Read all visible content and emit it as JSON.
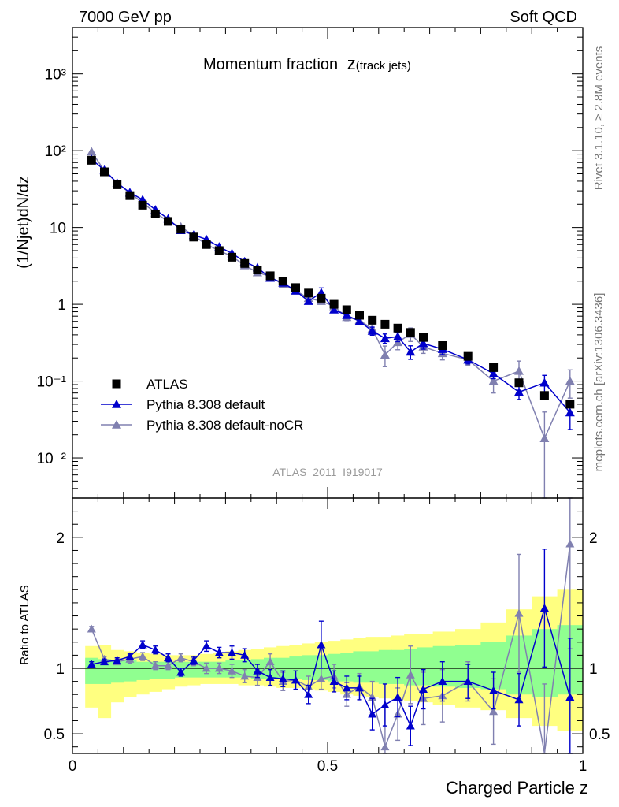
{
  "header": {
    "left": "7000 GeV pp",
    "right": "Soft QCD"
  },
  "side_labels": {
    "rivet": "Rivet 3.1.10, ≥ 2.8M events",
    "mcplots": "mcplots.cern.ch [arXiv:1306.3436]"
  },
  "colors": {
    "atlas": "#000000",
    "default": "#0000cc",
    "nocr": "#8080b0",
    "band_outer": "#ffff80",
    "band_inner": "#90ff90"
  },
  "chart_data": [
    {
      "type": "scatter",
      "title": "Momentum fraction",
      "title_suffix": "z",
      "title_sub": "(track jets)",
      "xlabel": "",
      "ylabel": "(1/Njet)dN/dz",
      "yscale": "log",
      "xlim": [
        0,
        1
      ],
      "ylim": [
        0.003,
        4000
      ],
      "y_tick_labels": [
        "10⁻²",
        "10⁻¹",
        "1",
        "10",
        "10²",
        "10³"
      ],
      "analysis_label": "ATLAS_2011_I919017",
      "legend_position": "lower-left",
      "x": [
        0.0375,
        0.0625,
        0.0875,
        0.1125,
        0.1375,
        0.1625,
        0.1875,
        0.2125,
        0.2375,
        0.2625,
        0.2875,
        0.3125,
        0.3375,
        0.3625,
        0.3875,
        0.4125,
        0.4375,
        0.4625,
        0.4875,
        0.5125,
        0.5375,
        0.5625,
        0.5875,
        0.6125,
        0.6375,
        0.6625,
        0.6875,
        0.725,
        0.775,
        0.825,
        0.875,
        0.925,
        0.975
      ],
      "series": [
        {
          "name": "ATLAS",
          "marker": "square",
          "values": [
            75,
            53,
            36,
            26,
            19.5,
            15,
            12,
            9.5,
            7.5,
            6.0,
            5.0,
            4.1,
            3.4,
            2.8,
            2.35,
            2.0,
            1.65,
            1.4,
            1.2,
            1.0,
            0.85,
            0.72,
            0.62,
            0.55,
            0.49,
            0.43,
            0.37,
            0.29,
            0.21,
            0.15,
            0.095,
            0.065,
            0.05
          ]
        },
        {
          "name": "Pythia 8.308 default",
          "marker": "triangle",
          "values": [
            77,
            56,
            38,
            28.5,
            23,
            17,
            13,
            9.2,
            8.0,
            7.0,
            5.6,
            4.6,
            3.6,
            3.0,
            2.2,
            1.9,
            1.5,
            1.1,
            1.42,
            0.85,
            0.72,
            0.6,
            0.45,
            0.36,
            0.38,
            0.24,
            0.31,
            0.26,
            0.19,
            0.125,
            0.072,
            0.095,
            0.039
          ],
          "errors": [
            0.04,
            0.03,
            0.03,
            0.02,
            0.03,
            0.03,
            0.03,
            0.03,
            0.03,
            0.03,
            0.03,
            0.04,
            0.04,
            0.04,
            0.05,
            0.05,
            0.06,
            0.06,
            0.15,
            0.07,
            0.08,
            0.08,
            0.12,
            0.14,
            0.14,
            0.2,
            0.16,
            0.15,
            0.12,
            0.14,
            0.2,
            0.25,
            0.4
          ]
        },
        {
          "name": "Pythia 8.308 default-noCR",
          "marker": "triangle",
          "values": [
            97,
            55,
            38,
            28,
            21,
            15.5,
            12,
            10.2,
            7.8,
            6.0,
            5.0,
            4.2,
            3.2,
            2.6,
            2.3,
            1.8,
            1.5,
            1.2,
            1.1,
            0.94,
            0.68,
            0.62,
            0.48,
            0.22,
            0.32,
            0.41,
            0.28,
            0.23,
            0.19,
            0.1,
            0.135,
            0.018,
            0.1
          ],
          "errors": [
            0.03,
            0.03,
            0.03,
            0.03,
            0.03,
            0.03,
            0.03,
            0.03,
            0.03,
            0.03,
            0.03,
            0.04,
            0.05,
            0.05,
            0.05,
            0.06,
            0.06,
            0.08,
            0.08,
            0.08,
            0.1,
            0.1,
            0.12,
            0.3,
            0.2,
            0.2,
            0.18,
            0.18,
            0.15,
            0.3,
            0.35,
            1.2,
            0.4
          ]
        }
      ]
    },
    {
      "type": "scatter",
      "title": "",
      "xlabel": "Charged Particle z",
      "ylabel": "Ratio to ATLAS",
      "xlim": [
        0,
        1
      ],
      "ylim": [
        0.35,
        2.3
      ],
      "x_tick_labels": [
        "0",
        "0.5",
        "1"
      ],
      "y_tick_labels": [
        "0.5",
        "1",
        "2"
      ],
      "x": [
        0.0375,
        0.0625,
        0.0875,
        0.1125,
        0.1375,
        0.1625,
        0.1875,
        0.2125,
        0.2375,
        0.2625,
        0.2875,
        0.3125,
        0.3375,
        0.3625,
        0.3875,
        0.4125,
        0.4375,
        0.4625,
        0.4875,
        0.5125,
        0.5375,
        0.5625,
        0.5875,
        0.6125,
        0.6375,
        0.6625,
        0.6875,
        0.725,
        0.775,
        0.825,
        0.875,
        0.925,
        0.975
      ],
      "bands": {
        "outer_upper": [
          1.17,
          1.18,
          1.14,
          1.13,
          1.12,
          1.11,
          1.1,
          1.1,
          1.1,
          1.11,
          1.12,
          1.13,
          1.14,
          1.15,
          1.16,
          1.17,
          1.18,
          1.19,
          1.2,
          1.21,
          1.22,
          1.23,
          1.24,
          1.24,
          1.25,
          1.26,
          1.26,
          1.28,
          1.3,
          1.35,
          1.45,
          1.55,
          1.6
        ],
        "outer_lower": [
          0.7,
          0.62,
          0.74,
          0.78,
          0.8,
          0.82,
          0.84,
          0.86,
          0.87,
          0.88,
          0.88,
          0.88,
          0.87,
          0.87,
          0.86,
          0.85,
          0.85,
          0.84,
          0.83,
          0.82,
          0.8,
          0.79,
          0.78,
          0.77,
          0.76,
          0.75,
          0.74,
          0.72,
          0.7,
          0.68,
          0.62,
          0.56,
          0.52
        ],
        "inner_upper": [
          1.08,
          1.07,
          1.06,
          1.06,
          1.05,
          1.05,
          1.05,
          1.05,
          1.05,
          1.05,
          1.05,
          1.06,
          1.06,
          1.07,
          1.08,
          1.08,
          1.09,
          1.1,
          1.1,
          1.11,
          1.12,
          1.13,
          1.13,
          1.14,
          1.14,
          1.15,
          1.16,
          1.17,
          1.18,
          1.2,
          1.25,
          1.3,
          1.33
        ],
        "inner_lower": [
          0.88,
          0.88,
          0.89,
          0.9,
          0.91,
          0.92,
          0.92,
          0.93,
          0.93,
          0.93,
          0.93,
          0.93,
          0.93,
          0.92,
          0.92,
          0.92,
          0.92,
          0.91,
          0.91,
          0.9,
          0.9,
          0.89,
          0.89,
          0.88,
          0.88,
          0.87,
          0.87,
          0.86,
          0.85,
          0.84,
          0.8,
          0.78,
          0.8
        ]
      },
      "series": [
        {
          "name": "Pythia 8.308 default",
          "values": [
            1.03,
            1.05,
            1.06,
            1.09,
            1.18,
            1.14,
            1.08,
            0.97,
            1.06,
            1.17,
            1.12,
            1.12,
            1.1,
            0.98,
            0.93,
            0.92,
            0.91,
            0.8,
            1.18,
            0.9,
            0.85,
            0.85,
            0.65,
            0.72,
            0.78,
            0.56,
            0.84,
            0.9,
            0.9,
            0.83,
            0.76,
            1.46,
            0.78
          ],
          "errors": [
            0.02,
            0.02,
            0.02,
            0.02,
            0.03,
            0.03,
            0.03,
            0.03,
            0.03,
            0.04,
            0.04,
            0.05,
            0.05,
            0.05,
            0.06,
            0.06,
            0.07,
            0.07,
            0.18,
            0.08,
            0.09,
            0.09,
            0.12,
            0.16,
            0.15,
            0.15,
            0.15,
            0.15,
            0.13,
            0.14,
            0.2,
            0.45,
            0.45
          ]
        },
        {
          "name": "Pythia 8.308 default-noCR",
          "values": [
            1.3,
            1.07,
            1.05,
            1.07,
            1.09,
            1.02,
            1.02,
            1.08,
            1.05,
            1.0,
            1.0,
            0.98,
            0.94,
            0.93,
            1.05,
            0.9,
            0.91,
            0.86,
            0.92,
            0.94,
            0.8,
            0.86,
            0.78,
            0.4,
            0.65,
            0.95,
            0.77,
            0.79,
            0.9,
            0.67,
            1.42,
            0.28,
            1.95
          ],
          "errors": [
            0.02,
            0.02,
            0.02,
            0.03,
            0.03,
            0.03,
            0.03,
            0.03,
            0.03,
            0.04,
            0.04,
            0.05,
            0.05,
            0.06,
            0.06,
            0.07,
            0.07,
            0.08,
            0.08,
            0.09,
            0.09,
            0.1,
            0.12,
            0.3,
            0.2,
            0.22,
            0.2,
            0.2,
            0.15,
            0.25,
            0.45,
            0.6,
            0.8
          ]
        }
      ]
    }
  ]
}
